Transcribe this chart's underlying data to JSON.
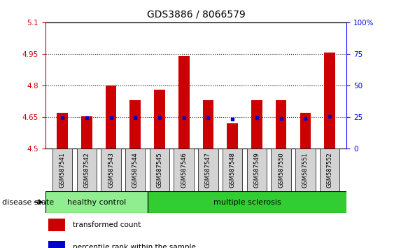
{
  "title": "GDS3886 / 8066579",
  "samples": [
    "GSM587541",
    "GSM587542",
    "GSM587543",
    "GSM587544",
    "GSM587545",
    "GSM587546",
    "GSM587547",
    "GSM587548",
    "GSM587549",
    "GSM587550",
    "GSM587551",
    "GSM587552"
  ],
  "transformed_count": [
    4.67,
    4.655,
    4.8,
    4.73,
    4.78,
    4.94,
    4.73,
    4.62,
    4.73,
    4.73,
    4.67,
    4.955
  ],
  "percentile_rank": [
    4.648,
    4.647,
    4.648,
    4.648,
    4.648,
    4.648,
    4.648,
    4.641,
    4.648,
    4.644,
    4.644,
    4.655
  ],
  "ylim": [
    4.5,
    5.1
  ],
  "yticks_left": [
    4.5,
    4.65,
    4.8,
    4.95,
    5.1
  ],
  "ytick_labels_left": [
    "4.5",
    "4.65",
    "4.8",
    "4.95",
    "5.1"
  ],
  "y2ticks_pct": [
    0,
    25,
    50,
    75,
    100
  ],
  "y2labels": [
    "0",
    "25",
    "50",
    "75",
    "100%"
  ],
  "dotted_lines": [
    4.65,
    4.8,
    4.95
  ],
  "bar_color": "#cc0000",
  "dot_color": "#0000cc",
  "bar_bottom": 4.5,
  "n_healthy": 4,
  "healthy_color": "#90ee90",
  "ms_color": "#32cd32",
  "disease_state_label": "disease state",
  "legend_red_label": "transformed count",
  "legend_blue_label": "percentile rank within the sample",
  "title_fontsize": 10,
  "tick_fontsize": 7.5,
  "label_fontsize": 8
}
